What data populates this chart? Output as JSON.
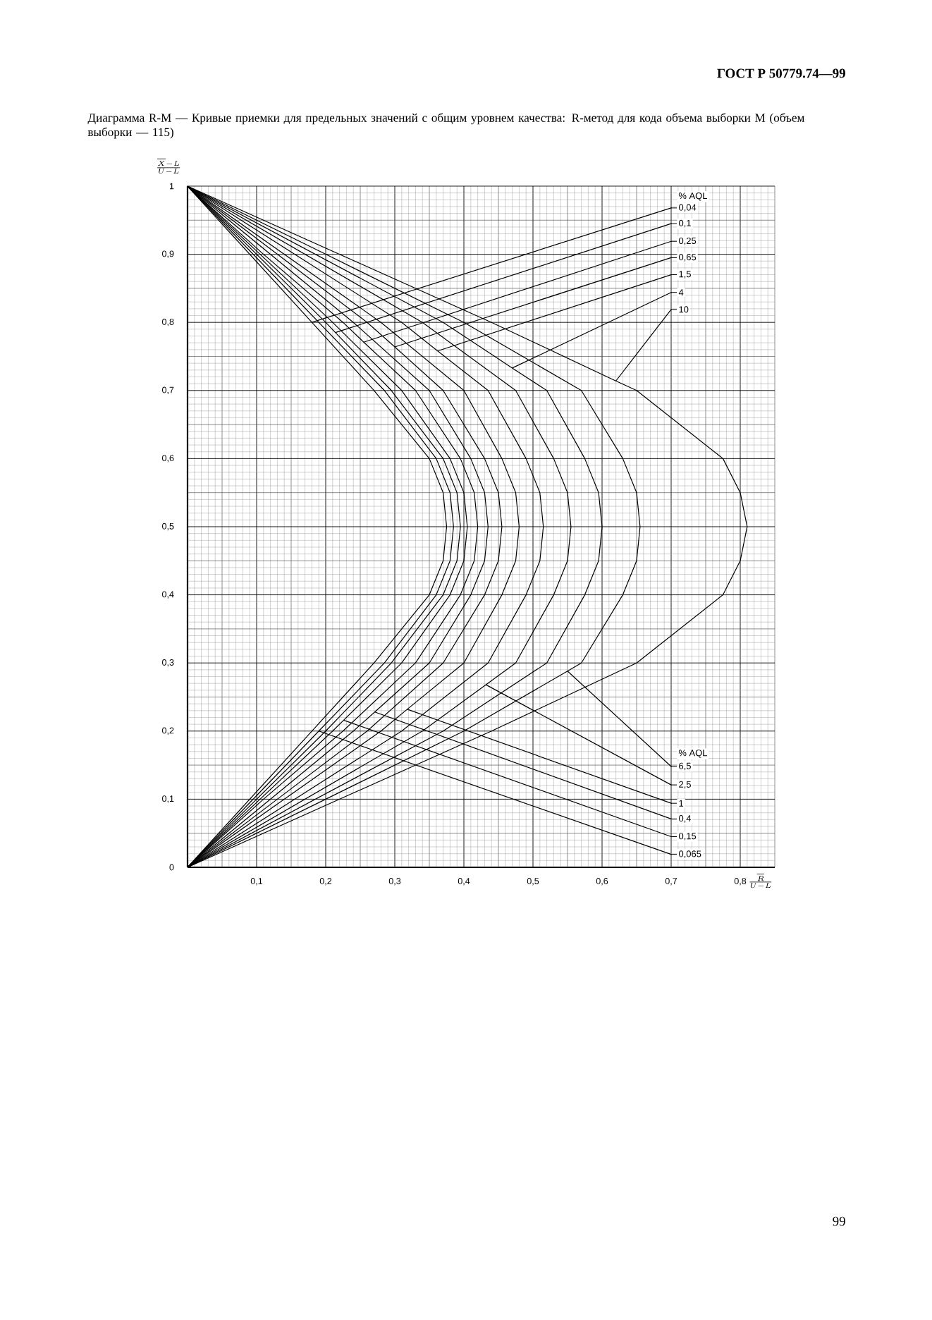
{
  "chart_data": {
    "type": "line",
    "title": "Диаграмма R-M — Кривые приемки для предельных значений с общим уровнем качества: R-метод для кода объема выборки M (объем выборки — 115)",
    "xlabel": "\\frac{\\overline{R}}{U-L}",
    "ylabel": "\\frac{\\overline{X}-L}{U-L}",
    "annotations": [
      "ГОСТ Р 50779.74—99",
      "% AQL",
      "% AQL",
      "99"
    ],
    "xlim": [
      0,
      0.85
    ],
    "ylim": [
      0,
      1
    ],
    "xticks": [
      {
        "value": 0.1,
        "label": "0,1"
      },
      {
        "value": 0.2,
        "label": "0,2"
      },
      {
        "value": 0.3,
        "label": "0,3"
      },
      {
        "value": 0.4,
        "label": "0,4"
      },
      {
        "value": 0.5,
        "label": "0,5"
      },
      {
        "value": 0.6,
        "label": "0,6"
      },
      {
        "value": 0.7,
        "label": "0,7"
      },
      {
        "value": 0.8,
        "label": "0,8"
      }
    ],
    "yticks": [
      0,
      {
        "value": 0.1,
        "label": "0,1"
      },
      {
        "value": 0.2,
        "label": "0,2"
      },
      {
        "value": 0.3,
        "label": "0,3"
      },
      {
        "value": 0.4,
        "label": "0,4"
      },
      {
        "value": 0.5,
        "label": "0,5"
      },
      {
        "value": 0.6,
        "label": "0,6"
      },
      {
        "value": 0.7,
        "label": "0,7"
      },
      {
        "value": 0.8,
        "label": "0,8"
      },
      {
        "value": 0.9,
        "label": "0,9"
      },
      1
    ],
    "grid": true,
    "legend": "right",
    "series": [
      {
        "name": "0,04",
        "color": "#000000",
        "x": [
          0,
          0.09,
          0.18,
          0.27,
          0.35,
          0.37,
          0.375,
          0.37,
          0.35,
          0.27,
          0.18,
          0.7,
          0.18,
          0.09,
          0
        ],
        "values": [
          0,
          0.1,
          0.2,
          0.3,
          0.4,
          0.45,
          0.5,
          0.55,
          0.6,
          0.7,
          0.8,
          0.968,
          0.8,
          0.9,
          1
        ]
      },
      {
        "name": "0,065",
        "color": "#000000",
        "x": [
          0,
          0.095,
          0.19,
          0.7,
          0.19,
          0.285,
          0.36,
          0.38,
          0.385,
          0.38,
          0.36,
          0.285,
          0.19,
          0.095,
          0
        ],
        "values": [
          0,
          0.1,
          0.2,
          0.019,
          0.2,
          0.3,
          0.4,
          0.45,
          0.5,
          0.55,
          0.6,
          0.7,
          0.8,
          0.9,
          1
        ]
      },
      {
        "name": "0,1",
        "color": "#000000",
        "x": [
          0,
          0.1,
          0.2,
          0.295,
          0.37,
          0.39,
          0.395,
          0.39,
          0.37,
          0.295,
          0.214,
          0.7,
          0.214,
          0.2,
          0.1,
          0
        ],
        "values": [
          0,
          0.1,
          0.2,
          0.3,
          0.4,
          0.45,
          0.5,
          0.55,
          0.6,
          0.7,
          0.785,
          0.945,
          0.785,
          0.8,
          0.9,
          1
        ]
      },
      {
        "name": "0,15",
        "color": "#000000",
        "x": [
          0,
          0.105,
          0.21,
          0.226,
          0.7,
          0.226,
          0.31,
          0.38,
          0.4,
          0.405,
          0.4,
          0.38,
          0.31,
          0.21,
          0.105,
          0
        ],
        "values": [
          0,
          0.1,
          0.2,
          0.216,
          0.045,
          0.216,
          0.3,
          0.4,
          0.45,
          0.5,
          0.55,
          0.6,
          0.7,
          0.8,
          0.9,
          1
        ]
      },
      {
        "name": "0,25",
        "color": "#000000",
        "x": [
          0,
          0.11,
          0.225,
          0.33,
          0.395,
          0.415,
          0.42,
          0.415,
          0.395,
          0.33,
          0.255,
          0.7,
          0.255,
          0.225,
          0.11,
          0
        ],
        "values": [
          0,
          0.1,
          0.2,
          0.3,
          0.4,
          0.45,
          0.5,
          0.55,
          0.6,
          0.7,
          0.771,
          0.919,
          0.771,
          0.8,
          0.9,
          1
        ]
      },
      {
        "name": "0,4",
        "color": "#000000",
        "x": [
          0,
          0.12,
          0.24,
          0.271,
          0.7,
          0.271,
          0.35,
          0.41,
          0.43,
          0.435,
          0.43,
          0.41,
          0.35,
          0.24,
          0.12,
          0
        ],
        "values": [
          0,
          0.1,
          0.2,
          0.228,
          0.071,
          0.228,
          0.3,
          0.4,
          0.45,
          0.5,
          0.55,
          0.6,
          0.7,
          0.8,
          0.9,
          1
        ]
      },
      {
        "name": "0,65",
        "color": "#000000",
        "x": [
          0,
          0.13,
          0.26,
          0.37,
          0.43,
          0.45,
          0.455,
          0.45,
          0.43,
          0.37,
          0.3,
          0.7,
          0.3,
          0.26,
          0.13,
          0
        ],
        "values": [
          0,
          0.1,
          0.2,
          0.3,
          0.4,
          0.45,
          0.5,
          0.55,
          0.6,
          0.7,
          0.764,
          0.895,
          0.764,
          0.8,
          0.9,
          1
        ]
      },
      {
        "name": "1",
        "color": "#000000",
        "x": [
          0,
          0.14,
          0.28,
          0.318,
          0.7,
          0.318,
          0.4,
          0.455,
          0.475,
          0.48,
          0.475,
          0.455,
          0.4,
          0.28,
          0.14,
          0
        ],
        "values": [
          0,
          0.1,
          0.2,
          0.232,
          0.094,
          0.232,
          0.3,
          0.4,
          0.45,
          0.5,
          0.55,
          0.6,
          0.7,
          0.8,
          0.9,
          1
        ]
      },
      {
        "name": "1,5",
        "color": "#000000",
        "x": [
          0,
          0.155,
          0.31,
          0.435,
          0.49,
          0.51,
          0.515,
          0.51,
          0.49,
          0.435,
          0.362,
          0.7,
          0.362,
          0.31,
          0.155,
          0
        ],
        "values": [
          0,
          0.1,
          0.2,
          0.3,
          0.4,
          0.45,
          0.5,
          0.55,
          0.6,
          0.7,
          0.758,
          0.87,
          0.758,
          0.8,
          0.9,
          1
        ]
      },
      {
        "name": "2,5",
        "color": "#000000",
        "x": [
          0,
          0.17,
          0.34,
          0.432,
          0.7,
          0.432,
          0.475,
          0.53,
          0.55,
          0.555,
          0.55,
          0.53,
          0.475,
          0.34,
          0.17,
          0
        ],
        "values": [
          0,
          0.1,
          0.2,
          0.268,
          0.121,
          0.268,
          0.3,
          0.4,
          0.45,
          0.5,
          0.55,
          0.6,
          0.7,
          0.8,
          0.9,
          1
        ]
      },
      {
        "name": "4",
        "color": "#000000",
        "x": [
          0,
          0.185,
          0.37,
          0.52,
          0.575,
          0.595,
          0.6,
          0.595,
          0.575,
          0.52,
          0.47,
          0.7,
          0.47,
          0.37,
          0.185,
          0
        ],
        "values": [
          0,
          0.1,
          0.2,
          0.3,
          0.4,
          0.45,
          0.5,
          0.55,
          0.6,
          0.7,
          0.733,
          0.844,
          0.733,
          0.8,
          0.9,
          1
        ]
      },
      {
        "name": "6,5",
        "color": "#000000",
        "x": [
          0,
          0.2,
          0.4,
          0.55,
          0.7,
          0.55,
          0.57,
          0.63,
          0.65,
          0.655,
          0.65,
          0.63,
          0.57,
          0.4,
          0.2,
          0
        ],
        "values": [
          0,
          0.1,
          0.2,
          0.288,
          0.148,
          0.288,
          0.3,
          0.4,
          0.45,
          0.5,
          0.55,
          0.6,
          0.7,
          0.8,
          0.9,
          1
        ]
      },
      {
        "name": "10",
        "color": "#000000",
        "x": [
          0,
          0.22,
          0.44,
          0.65,
          0.775,
          0.8,
          0.81,
          0.8,
          0.775,
          0.65,
          0.62,
          0.7,
          0.62,
          0.44,
          0.22,
          0
        ],
        "values": [
          0,
          0.1,
          0.2,
          0.3,
          0.4,
          0.45,
          0.5,
          0.55,
          0.6,
          0.7,
          0.714,
          0.819,
          0.714,
          0.8,
          0.9,
          1
        ]
      }
    ]
  }
}
